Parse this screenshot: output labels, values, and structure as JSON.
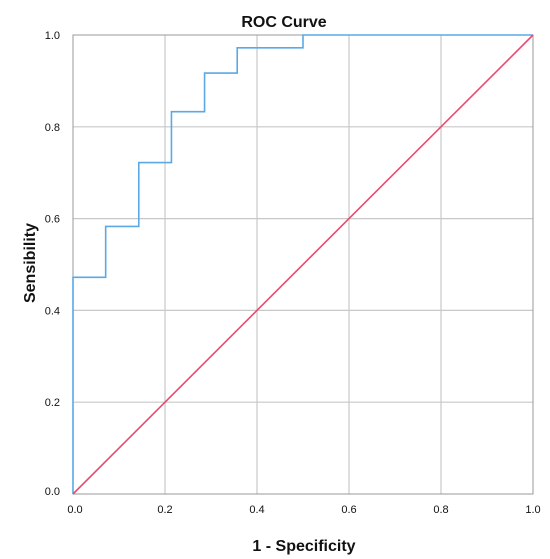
{
  "chart_data": {
    "type": "line",
    "title": "ROC Curve",
    "xlabel": "1 - Specificity",
    "ylabel": "Sensibility",
    "xlim": [
      0.0,
      1.0
    ],
    "ylim": [
      0.0,
      1.0
    ],
    "x_ticks": [
      "0.0",
      "0.2",
      "0.4",
      "0.6",
      "0.8",
      "1.0"
    ],
    "y_ticks": [
      "0.0",
      "0.2",
      "0.4",
      "0.6",
      "0.8",
      "1.0"
    ],
    "grid": true,
    "series": [
      {
        "color": "#5aa9e6",
        "step": true,
        "points": [
          [
            0.0,
            0.0
          ],
          [
            0.0,
            0.472
          ],
          [
            0.071,
            0.472
          ],
          [
            0.071,
            0.583
          ],
          [
            0.143,
            0.583
          ],
          [
            0.143,
            0.722
          ],
          [
            0.214,
            0.722
          ],
          [
            0.214,
            0.833
          ],
          [
            0.286,
            0.833
          ],
          [
            0.286,
            0.917
          ],
          [
            0.357,
            0.917
          ],
          [
            0.357,
            0.972
          ],
          [
            0.5,
            0.972
          ],
          [
            0.5,
            1.0
          ],
          [
            1.0,
            1.0
          ]
        ]
      },
      {
        "color": "#e94a72",
        "points": [
          [
            0.0,
            0.0
          ],
          [
            1.0,
            1.0
          ]
        ]
      }
    ]
  }
}
